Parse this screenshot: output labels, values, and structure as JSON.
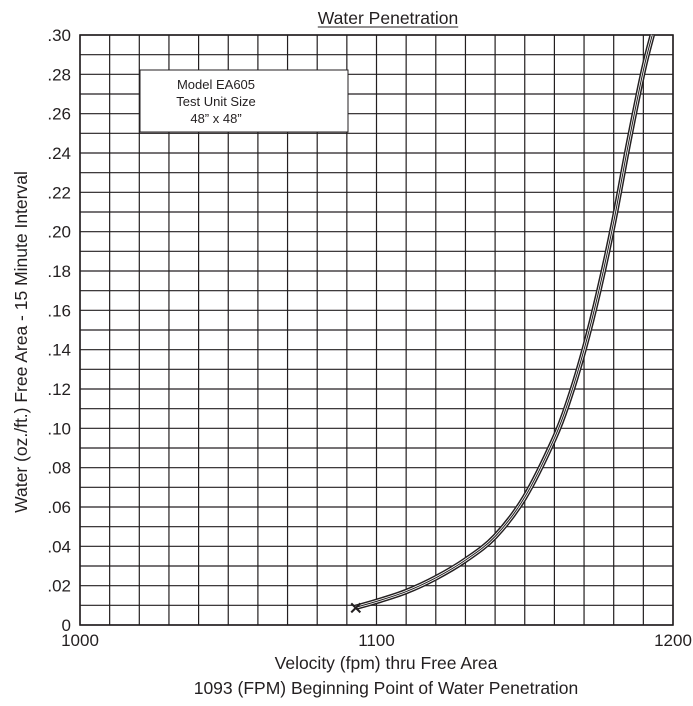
{
  "chart_data": {
    "type": "line",
    "title": "Water Penetration",
    "xlabel": "Velocity (fpm) thru Free Area",
    "ylabel": "Water (oz./ft.) Free Area - 15 Minute Interval",
    "footnote": "1093 (FPM) Beginning Point of Water Penetration",
    "xlim": [
      1000,
      1200
    ],
    "ylim": [
      0,
      0.3
    ],
    "grid": true,
    "x_ticks": [
      {
        "value": 1000,
        "label": "1000"
      },
      {
        "value": 1100,
        "label": "1100"
      },
      {
        "value": 1200,
        "label": "1200"
      }
    ],
    "y_ticks": [
      {
        "value": 0.0,
        "label": "0"
      },
      {
        "value": 0.02,
        "label": ".02"
      },
      {
        "value": 0.04,
        "label": ".04"
      },
      {
        "value": 0.06,
        "label": ".06"
      },
      {
        "value": 0.08,
        "label": ".08"
      },
      {
        "value": 0.1,
        "label": ".10"
      },
      {
        "value": 0.12,
        "label": ".12"
      },
      {
        "value": 0.14,
        "label": ".14"
      },
      {
        "value": 0.16,
        "label": ".16"
      },
      {
        "value": 0.18,
        "label": ".18"
      },
      {
        "value": 0.2,
        "label": ".20"
      },
      {
        "value": 0.22,
        "label": ".22"
      },
      {
        "value": 0.24,
        "label": ".24"
      },
      {
        "value": 0.26,
        "label": ".26"
      },
      {
        "value": 0.28,
        "label": ".28"
      },
      {
        "value": 0.3,
        "label": ".30"
      }
    ],
    "x_grid_values": [
      1000,
      1010,
      1020,
      1030,
      1040,
      1050,
      1060,
      1070,
      1080,
      1090,
      1100,
      1110,
      1120,
      1130,
      1140,
      1150,
      1160,
      1170,
      1180,
      1190,
      1200
    ],
    "y_grid_values": [
      0,
      0.01,
      0.02,
      0.03,
      0.04,
      0.05,
      0.06,
      0.07,
      0.08,
      0.09,
      0.1,
      0.11,
      0.12,
      0.13,
      0.14,
      0.15,
      0.16,
      0.17,
      0.18,
      0.19,
      0.2,
      0.21,
      0.22,
      0.23,
      0.24,
      0.25,
      0.26,
      0.27,
      0.28,
      0.29,
      0.3
    ],
    "series": [
      {
        "x": [
          1093,
          1100,
          1110,
          1120,
          1130,
          1140,
          1150,
          1160,
          1165,
          1170,
          1175,
          1180,
          1185,
          1190,
          1193
        ],
        "y": [
          0.009,
          0.012,
          0.017,
          0.024,
          0.033,
          0.045,
          0.065,
          0.095,
          0.115,
          0.14,
          0.17,
          0.205,
          0.245,
          0.282,
          0.3
        ]
      }
    ],
    "start_marker": {
      "x": 1093,
      "y": 0.009,
      "symbol": "×"
    },
    "color": "#231f20",
    "annotation_box": {
      "lines": [
        "Model EA605",
        "Test Unit Size",
        "48” x 48”"
      ]
    }
  }
}
